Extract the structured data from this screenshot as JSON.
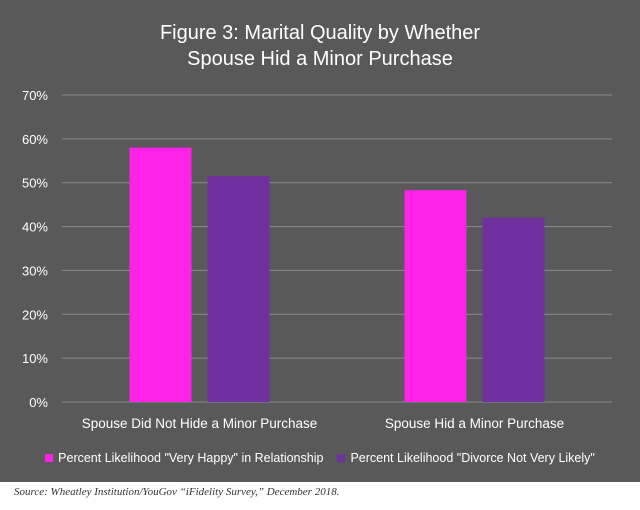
{
  "chart_data": {
    "type": "bar",
    "title_lines": [
      "Figure 3: Marital Quality by Whether",
      "Spouse Hid a Minor Purchase"
    ],
    "categories": [
      "Spouse Did Not Hide a Minor Purchase",
      "Spouse Hid a Minor Purchase"
    ],
    "series": [
      {
        "name": "Percent Likelihood \"Very Happy\" in Relationship",
        "values": [
          58,
          48.3
        ],
        "color": "#ff23e8"
      },
      {
        "name": "Percent Likelihood \"Divorce Not Very Likely\"",
        "values": [
          51.5,
          42
        ],
        "color": "#7030a0"
      }
    ],
    "ylim": [
      0,
      70
    ],
    "yticks": [
      0,
      10,
      20,
      30,
      40,
      50,
      60,
      70
    ],
    "ytick_labels": [
      "0%",
      "10%",
      "20%",
      "30%",
      "40%",
      "50%",
      "60%",
      "70%"
    ],
    "grid": true,
    "legend_position": "bottom"
  },
  "source": "Source: Wheatley Institution/YouGov “iFidelity Survey,” December 2018."
}
